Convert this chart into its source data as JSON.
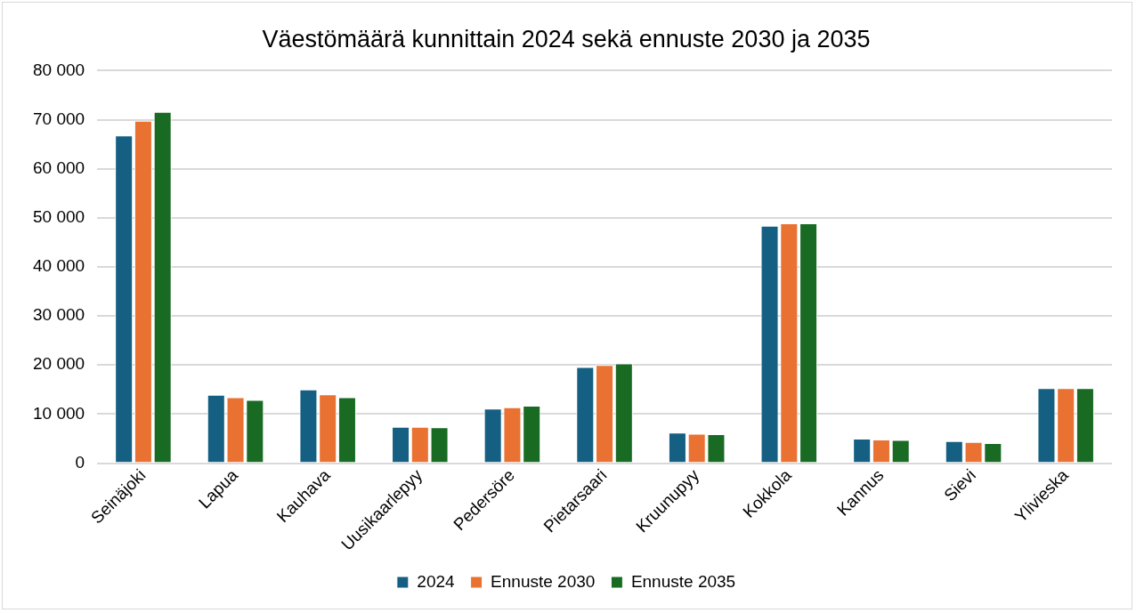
{
  "chart_data": {
    "type": "bar",
    "title": "Väestömäärä kunnittain 2024 sekä ennuste 2030 ja 2035",
    "categories": [
      "Seinäjoki",
      "Lapua",
      "Kauhava",
      "Uusikaarlepyy",
      "Pedersöre",
      "Pietarsaari",
      "Kruunupyy",
      "Kokkola",
      "Kannus",
      "Sievi",
      "Ylivieska"
    ],
    "series": [
      {
        "name": "2024",
        "color": "#156082",
        "values": [
          66800,
          13900,
          15000,
          7400,
          11100,
          19600,
          6200,
          48400,
          5000,
          4500,
          15300
        ]
      },
      {
        "name": "Ennuste 2030",
        "color": "#e97132",
        "values": [
          69800,
          13400,
          14000,
          7400,
          11400,
          20000,
          6000,
          48900,
          4800,
          4300,
          15300
        ]
      },
      {
        "name": "Ennuste 2035",
        "color": "#196b24",
        "values": [
          71600,
          12900,
          13400,
          7300,
          11700,
          20300,
          5900,
          48900,
          4700,
          4100,
          15300
        ]
      }
    ],
    "ylim": [
      0,
      80000
    ],
    "yticks": [
      {
        "value": 0,
        "label": "0"
      },
      {
        "value": 10000,
        "label": "10 000"
      },
      {
        "value": 20000,
        "label": "20 000"
      },
      {
        "value": 30000,
        "label": "30 000"
      },
      {
        "value": 40000,
        "label": "40 000"
      },
      {
        "value": 50000,
        "label": "50 000"
      },
      {
        "value": 60000,
        "label": "60 000"
      },
      {
        "value": 70000,
        "label": "70 000"
      },
      {
        "value": 80000,
        "label": "80 000"
      }
    ],
    "grid": "y",
    "legend": "bottom"
  }
}
